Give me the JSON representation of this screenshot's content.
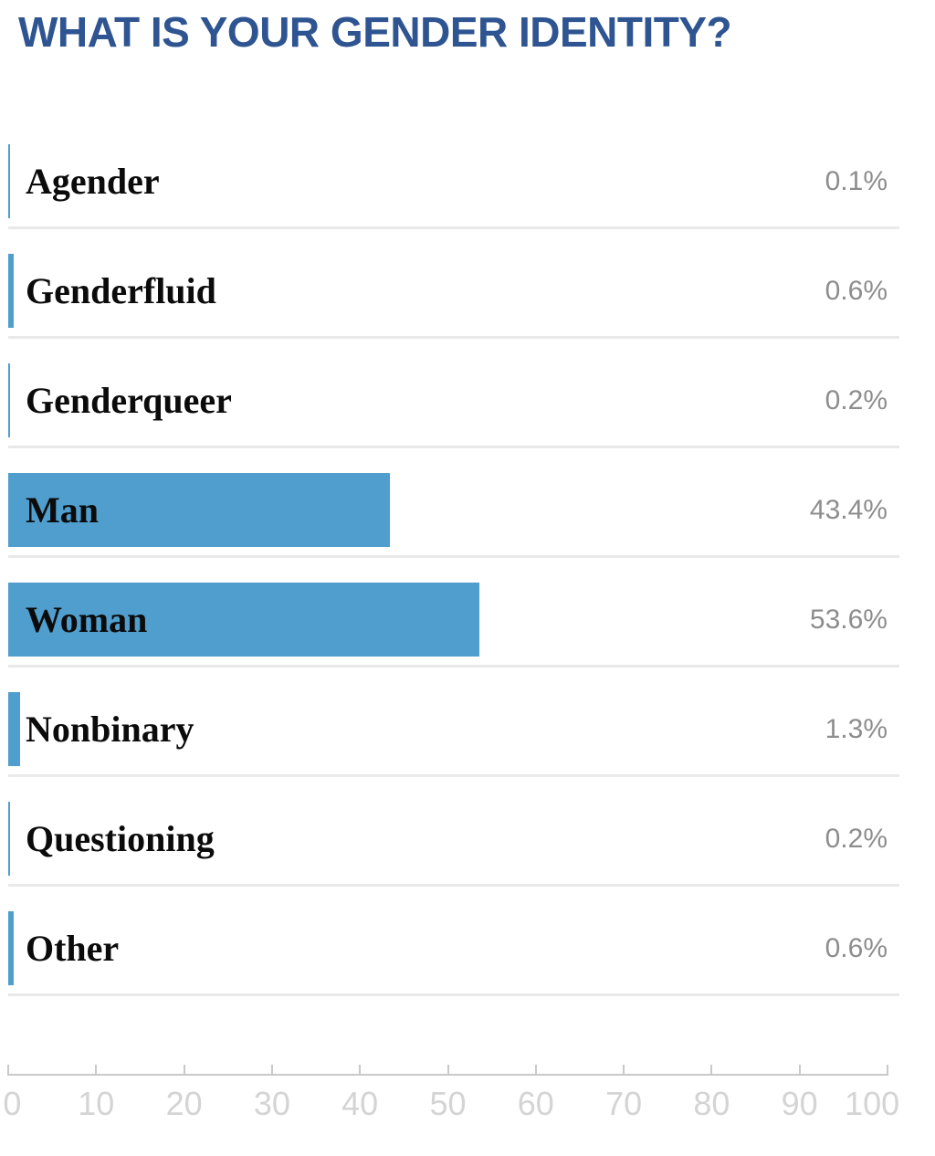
{
  "title": "WHAT IS YOUR GENDER IDENTITY?",
  "colors": {
    "title": "#2e5491",
    "bar": "#4f9ecd",
    "category_label": "#0b0b0b",
    "value_label": "#8d8d8d",
    "divider": "#e9e9e9",
    "axis": "#c9c9c9",
    "axis_tick_label": "#d4d4d4",
    "background": "#ffffff"
  },
  "chart_data": {
    "type": "bar",
    "orientation": "horizontal",
    "title": "WHAT IS YOUR GENDER IDENTITY?",
    "categories": [
      "Agender",
      "Genderfluid",
      "Genderqueer",
      "Man",
      "Woman",
      "Nonbinary",
      "Questioning",
      "Other"
    ],
    "values": [
      0.1,
      0.6,
      0.2,
      43.4,
      53.6,
      1.3,
      0.2,
      0.6
    ],
    "value_labels": [
      "0.1%",
      "0.6%",
      "0.2%",
      "43.4%",
      "53.6%",
      "1.3%",
      "0.2%",
      "0.6%"
    ],
    "unit": "%",
    "xlim": [
      0,
      100
    ],
    "x_ticks": [
      0,
      10,
      20,
      30,
      40,
      50,
      60,
      70,
      80,
      90,
      100
    ],
    "x_tick_labels": [
      "0",
      "10",
      "20",
      "30",
      "40",
      "50",
      "60",
      "70",
      "80",
      "90",
      "100"
    ],
    "grid": false,
    "legend": false,
    "value_label_position": "right-aligned",
    "category_label_position": "left-inside"
  }
}
